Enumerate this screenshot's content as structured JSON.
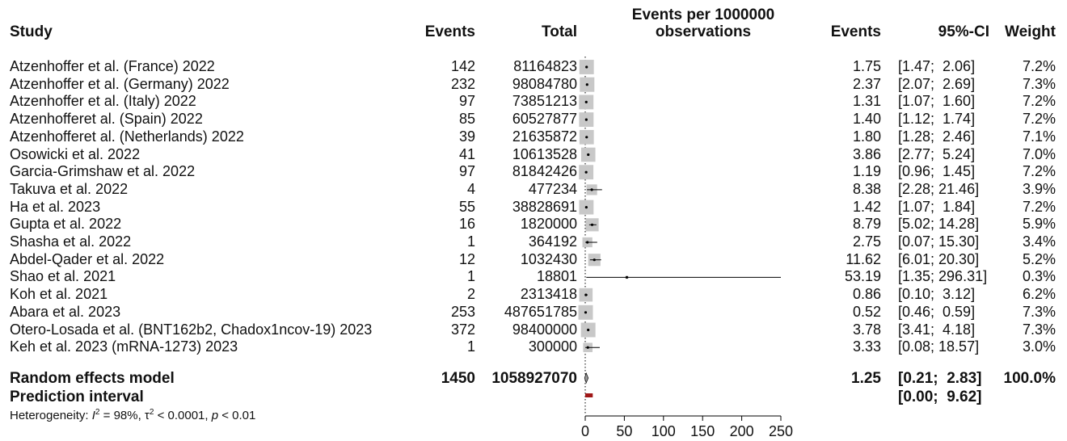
{
  "headers": {
    "study": "Study",
    "events": "Events",
    "total": "Total",
    "plot_title_line1": "Events per 1000000",
    "plot_title_line2": "observations",
    "events_rate": "Events",
    "ci": "95%-CI",
    "weight": "Weight"
  },
  "studies": [
    {
      "name": "Atzenhoffer et al. (France) 2022",
      "events": "142",
      "total": "81164823",
      "rate": "1.75",
      "ci": "[1.47;  2.06]",
      "weight": "7.2%"
    },
    {
      "name": "Atzenhoffer et al. (Germany) 2022",
      "events": "232",
      "total": "98084780",
      "rate": "2.37",
      "ci": "[2.07;  2.69]",
      "weight": "7.3%"
    },
    {
      "name": "Atzenhoffer et al. (Italy) 2022",
      "events": "97",
      "total": "73851213",
      "rate": "1.31",
      "ci": "[1.07;  1.60]",
      "weight": "7.2%"
    },
    {
      "name": "Atzenhofferet al. (Spain) 2022",
      "events": "85",
      "total": "60527877",
      "rate": "1.40",
      "ci": "[1.12;  1.74]",
      "weight": "7.2%"
    },
    {
      "name": "Atzenhofferet al. (Netherlands) 2022",
      "events": "39",
      "total": "21635872",
      "rate": "1.80",
      "ci": "[1.28;  2.46]",
      "weight": "7.1%"
    },
    {
      "name": "Osowicki et al. 2022",
      "events": "41",
      "total": "10613528",
      "rate": "3.86",
      "ci": "[2.77;  5.24]",
      "weight": "7.0%"
    },
    {
      "name": "Garcia-Grimshaw et al. 2022",
      "events": "97",
      "total": "81842426",
      "rate": "1.19",
      "ci": "[0.96;  1.45]",
      "weight": "7.2%"
    },
    {
      "name": "Takuva et al. 2022",
      "events": "4",
      "total": "477234",
      "rate": "8.38",
      "ci": "[2.28; 21.46]",
      "weight": "3.9%"
    },
    {
      "name": "Ha et al. 2023",
      "events": "55",
      "total": "38828691",
      "rate": "1.42",
      "ci": "[1.07;  1.84]",
      "weight": "7.2%"
    },
    {
      "name": "Gupta et al. 2022",
      "events": "16",
      "total": "1820000",
      "rate": "8.79",
      "ci": "[5.02; 14.28]",
      "weight": "5.9%"
    },
    {
      "name": "Shasha et al. 2022",
      "events": "1",
      "total": "364192",
      "rate": "2.75",
      "ci": "[0.07; 15.30]",
      "weight": "3.4%"
    },
    {
      "name": "Abdel-Qader et al. 2022",
      "events": "12",
      "total": "1032430",
      "rate": "11.62",
      "ci": "[6.01; 20.30]",
      "weight": "5.2%"
    },
    {
      "name": "Shao et al. 2021",
      "events": "1",
      "total": "18801",
      "rate": "53.19",
      "ci": "[1.35; 296.31]",
      "weight": "0.3%"
    },
    {
      "name": "Koh et al. 2021",
      "events": "2",
      "total": "2313418",
      "rate": "0.86",
      "ci": "[0.10;  3.12]",
      "weight": "6.2%"
    },
    {
      "name": "Abara et al. 2023",
      "events": "253",
      "total": "487651785",
      "rate": "0.52",
      "ci": "[0.46;  0.59]",
      "weight": "7.3%"
    },
    {
      "name": "Otero-Losada et al. (BNT162b2, Chadox1ncov-19) 2023",
      "events": "372",
      "total": "98400000",
      "rate": "3.78",
      "ci": "[3.41;  4.18]",
      "weight": "7.3%"
    },
    {
      "name": "Keh et al. 2023  (mRNA-1273) 2023",
      "events": "1",
      "total": "300000",
      "rate": "3.33",
      "ci": "[0.08; 18.57]",
      "weight": "3.0%"
    }
  ],
  "summary": {
    "label": "Random effects model",
    "events": "1450",
    "total": "1058927070",
    "rate": "1.25",
    "ci": "[0.21;  2.83]",
    "weight": "100.0%"
  },
  "prediction": {
    "label": "Prediction interval",
    "ci": "[0.00;  9.62]"
  },
  "heterogeneity": {
    "prefix": "Heterogeneity: ",
    "i2_symbol": "I",
    "i2_value": " = 98%, ",
    "tau_symbol": "τ",
    "tau_value": " < 0.0001, ",
    "p_symbol": "p",
    "p_value": " < 0.01"
  },
  "chart_data": {
    "type": "forest",
    "xlim": [
      0,
      250
    ],
    "x_ticks": [
      "0",
      "50",
      "100",
      "150",
      "200",
      "250"
    ],
    "reference_line": 0,
    "points": [
      {
        "est": 1.75,
        "lo": 1.47,
        "hi": 2.06,
        "weight": 7.2
      },
      {
        "est": 2.37,
        "lo": 2.07,
        "hi": 2.69,
        "weight": 7.3
      },
      {
        "est": 1.31,
        "lo": 1.07,
        "hi": 1.6,
        "weight": 7.2
      },
      {
        "est": 1.4,
        "lo": 1.12,
        "hi": 1.74,
        "weight": 7.2
      },
      {
        "est": 1.8,
        "lo": 1.28,
        "hi": 2.46,
        "weight": 7.1
      },
      {
        "est": 3.86,
        "lo": 2.77,
        "hi": 5.24,
        "weight": 7.0
      },
      {
        "est": 1.19,
        "lo": 0.96,
        "hi": 1.45,
        "weight": 7.2
      },
      {
        "est": 8.38,
        "lo": 2.28,
        "hi": 21.46,
        "weight": 3.9
      },
      {
        "est": 1.42,
        "lo": 1.07,
        "hi": 1.84,
        "weight": 7.2
      },
      {
        "est": 8.79,
        "lo": 5.02,
        "hi": 14.28,
        "weight": 5.9
      },
      {
        "est": 2.75,
        "lo": 0.07,
        "hi": 15.3,
        "weight": 3.4
      },
      {
        "est": 11.62,
        "lo": 6.01,
        "hi": 20.3,
        "weight": 5.2
      },
      {
        "est": 53.19,
        "lo": 1.35,
        "hi": 296.31,
        "weight": 0.3
      },
      {
        "est": 0.86,
        "lo": 0.1,
        "hi": 3.12,
        "weight": 6.2
      },
      {
        "est": 0.52,
        "lo": 0.46,
        "hi": 0.59,
        "weight": 7.3
      },
      {
        "est": 3.78,
        "lo": 3.41,
        "hi": 4.18,
        "weight": 7.3
      },
      {
        "est": 3.33,
        "lo": 0.08,
        "hi": 18.57,
        "weight": 3.0
      }
    ],
    "summary": {
      "est": 1.25,
      "lo": 0.21,
      "hi": 2.83
    },
    "prediction": {
      "lo": 0.0,
      "hi": 9.62
    },
    "colors": {
      "box": "#c8c8c8",
      "line": "#000000",
      "prediction": "#a01818"
    }
  }
}
